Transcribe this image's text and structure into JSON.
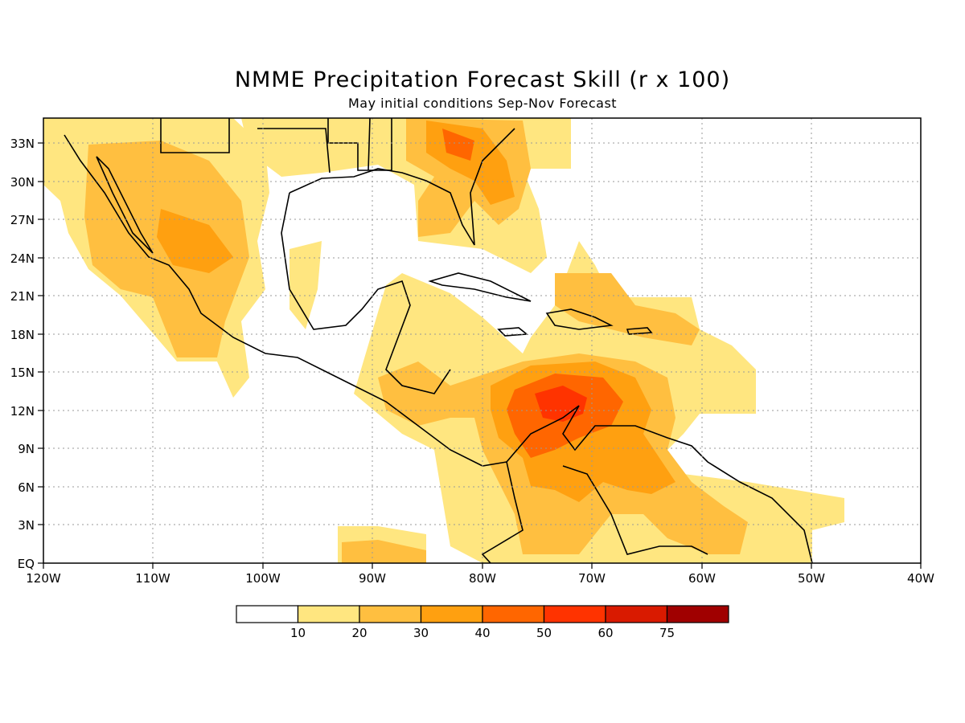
{
  "title": "NMME Precipitation Forecast Skill (r x 100)",
  "subtitle": "May initial conditions  Sep-Nov Forecast",
  "map": {
    "lon_ticks": [
      "120W",
      "110W",
      "100W",
      "90W",
      "80W",
      "70W",
      "60W",
      "50W",
      "40W"
    ],
    "lat_ticks": [
      "33N",
      "30N",
      "27N",
      "24N",
      "21N",
      "18N",
      "15N",
      "12N",
      "9N",
      "6N",
      "3N",
      "EQ"
    ]
  },
  "legend": {
    "labels": [
      "10",
      "20",
      "30",
      "40",
      "50",
      "60",
      "75"
    ],
    "colors": [
      "#ffffff",
      "#ffe680",
      "#ffbf40",
      "#ffa010",
      "#ff6600",
      "#ff3300",
      "#d91a00",
      "#a00000"
    ]
  }
}
